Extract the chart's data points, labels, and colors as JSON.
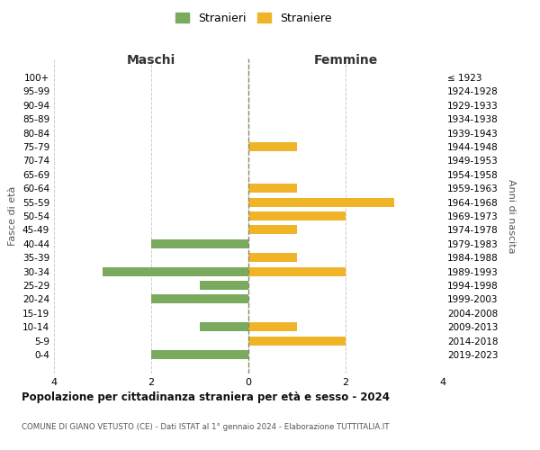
{
  "age_groups": [
    "100+",
    "95-99",
    "90-94",
    "85-89",
    "80-84",
    "75-79",
    "70-74",
    "65-69",
    "60-64",
    "55-59",
    "50-54",
    "45-49",
    "40-44",
    "35-39",
    "30-34",
    "25-29",
    "20-24",
    "15-19",
    "10-14",
    "5-9",
    "0-4"
  ],
  "birth_years": [
    "≤ 1923",
    "1924-1928",
    "1929-1933",
    "1934-1938",
    "1939-1943",
    "1944-1948",
    "1949-1953",
    "1954-1958",
    "1959-1963",
    "1964-1968",
    "1969-1973",
    "1974-1978",
    "1979-1983",
    "1984-1988",
    "1989-1993",
    "1994-1998",
    "1999-2003",
    "2004-2008",
    "2009-2013",
    "2014-2018",
    "2019-2023"
  ],
  "maschi": [
    0,
    0,
    0,
    0,
    0,
    0,
    0,
    0,
    0,
    0,
    0,
    0,
    2,
    0,
    3,
    1,
    2,
    0,
    1,
    0,
    2
  ],
  "femmine": [
    0,
    0,
    0,
    0,
    0,
    1,
    0,
    0,
    1,
    3,
    2,
    1,
    0,
    1,
    2,
    0,
    0,
    0,
    1,
    2,
    0
  ],
  "maschi_color": "#7aaa5e",
  "femmine_color": "#f0b429",
  "title": "Popolazione per cittadinanza straniera per età e sesso - 2024",
  "subtitle": "COMUNE DI GIANO VETUSTO (CE) - Dati ISTAT al 1° gennaio 2024 - Elaborazione TUTTITALIA.IT",
  "left_label": "Maschi",
  "right_label": "Femmine",
  "ylabel_left": "Fasce di età",
  "ylabel_right": "Anni di nascita",
  "legend_maschi": "Stranieri",
  "legend_femmine": "Straniere",
  "xlim": 4,
  "background_color": "#ffffff",
  "grid_color": "#cccccc"
}
